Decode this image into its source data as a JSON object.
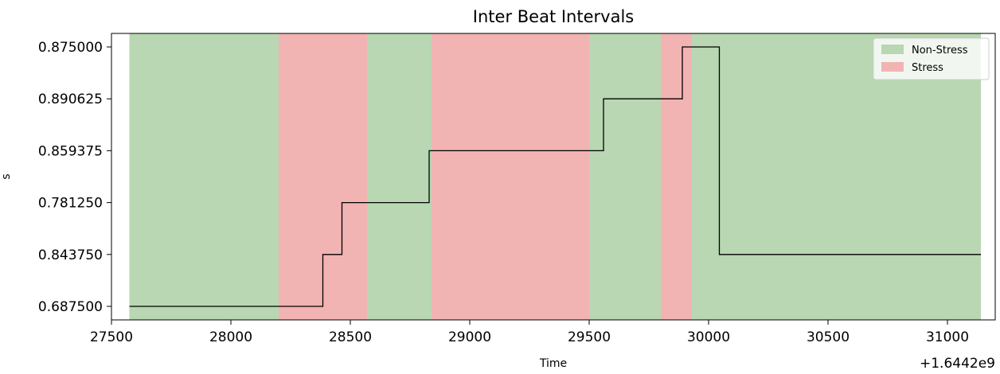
{
  "chart_data": {
    "type": "line",
    "title": "Inter Beat Intervals",
    "xlabel": "Time",
    "ylabel": "s",
    "x_offset_text": "+1.6442e9",
    "xlim": [
      27500,
      31200
    ],
    "x_ticks": [
      27500,
      28000,
      28500,
      29000,
      29500,
      30000,
      30500,
      31000
    ],
    "y_categories": [
      "0.687500",
      "0.843750",
      "0.781250",
      "0.859375",
      "0.890625",
      "0.875000"
    ],
    "series": [
      {
        "drawstyle": "steps-post",
        "color": "#000000",
        "x": [
          27575,
          28385,
          28465,
          28830,
          29560,
          29890,
          30045,
          31140
        ],
        "y": [
          "0.687500",
          "0.843750",
          "0.781250",
          "0.859375",
          "0.890625",
          "0.875000",
          "0.843750",
          "0.843750"
        ]
      }
    ],
    "regions": [
      {
        "start": 27575,
        "end": 28200,
        "label": "Non-Stress"
      },
      {
        "start": 28200,
        "end": 28570,
        "label": "Stress"
      },
      {
        "start": 28570,
        "end": 28840,
        "label": "Non-Stress"
      },
      {
        "start": 28840,
        "end": 29500,
        "label": "Stress"
      },
      {
        "start": 29500,
        "end": 29800,
        "label": "Non-Stress"
      },
      {
        "start": 29800,
        "end": 29930,
        "label": "Stress"
      },
      {
        "start": 29930,
        "end": 31140,
        "label": "Non-Stress"
      }
    ],
    "legend": {
      "placement": "top-right",
      "items": [
        {
          "label": "Non-Stress",
          "color": "#b8d7b2"
        },
        {
          "label": "Stress",
          "color": "#f2b3b3"
        }
      ]
    },
    "grid": false
  }
}
